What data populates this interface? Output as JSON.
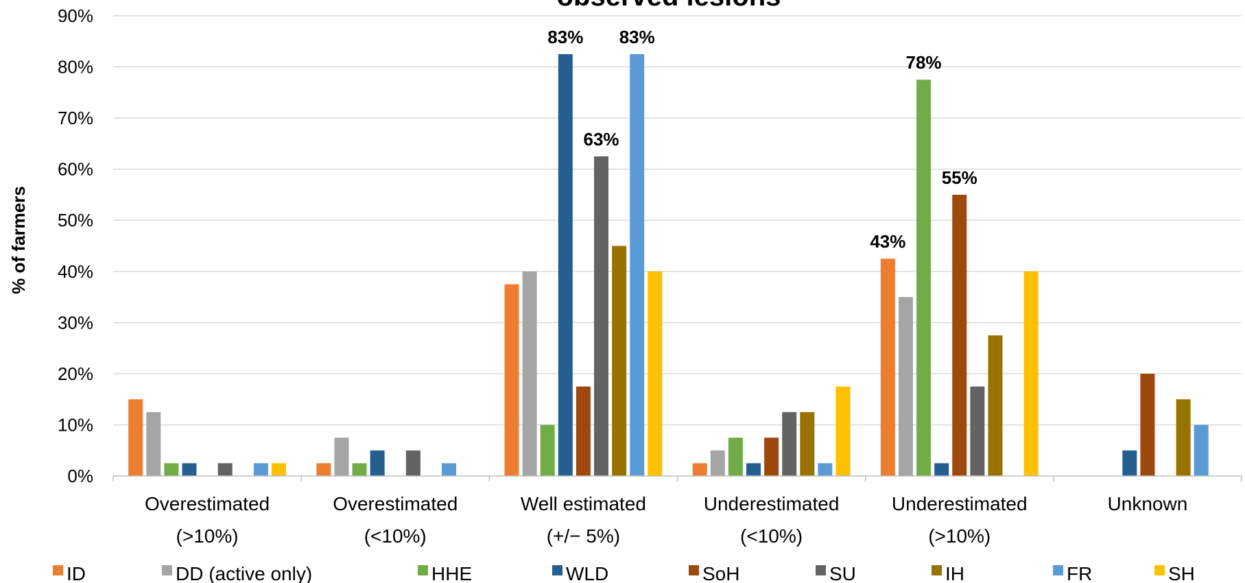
{
  "chart_data": {
    "type": "bar",
    "title": "observed lesions",
    "ylabel": "% of farmers",
    "xlabel": "",
    "ylim": [
      0,
      90
    ],
    "yticks": [
      "0%",
      "10%",
      "20%",
      "30%",
      "40%",
      "50%",
      "60%",
      "70%",
      "80%",
      "90%"
    ],
    "grid": true,
    "legend_position": "bottom",
    "categories": [
      [
        "Overestimated",
        "(>10%)"
      ],
      [
        "Overestimated",
        "(<10%)"
      ],
      [
        "Well estimated",
        "(+/− 5%)"
      ],
      [
        "Underestimated",
        "(<10%)"
      ],
      [
        "Underestimated",
        "(>10%)"
      ],
      [
        "Unknown"
      ]
    ],
    "series": [
      {
        "name": "ID",
        "color": "#ED7D31",
        "values": [
          15,
          2.5,
          37.5,
          2.5,
          42.5,
          0
        ]
      },
      {
        "name": "DD (active only)",
        "color": "#A5A5A5",
        "values": [
          12.5,
          7.5,
          40,
          5,
          35,
          0
        ]
      },
      {
        "name": "HHE",
        "color": "#70AD47",
        "values": [
          2.5,
          2.5,
          10,
          7.5,
          77.5,
          0
        ]
      },
      {
        "name": "WLD",
        "color": "#255E91",
        "values": [
          2.5,
          5,
          82.5,
          2.5,
          2.5,
          5
        ]
      },
      {
        "name": "SoH",
        "color": "#9E480E",
        "values": [
          0,
          0,
          17.5,
          7.5,
          55,
          20
        ]
      },
      {
        "name": "SU",
        "color": "#636363",
        "values": [
          2.5,
          5,
          62.5,
          12.5,
          17.5,
          0
        ]
      },
      {
        "name": "IH",
        "color": "#997300",
        "values": [
          0,
          0,
          45,
          12.5,
          27.5,
          15
        ]
      },
      {
        "name": "FR",
        "color": "#5B9BD5",
        "values": [
          2.5,
          2.5,
          82.5,
          2.5,
          0,
          10
        ]
      },
      {
        "name": "SH",
        "color": "#FFC000",
        "values": [
          2.5,
          0,
          40,
          17.5,
          40,
          0
        ]
      }
    ],
    "data_labels": [
      {
        "series": 3,
        "category": 2,
        "text": "83%"
      },
      {
        "series": 5,
        "category": 2,
        "text": "63%"
      },
      {
        "series": 7,
        "category": 2,
        "text": "83%"
      },
      {
        "series": 0,
        "category": 4,
        "text": "43%"
      },
      {
        "series": 2,
        "category": 4,
        "text": "78%"
      },
      {
        "series": 4,
        "category": 4,
        "text": "55%"
      }
    ]
  }
}
